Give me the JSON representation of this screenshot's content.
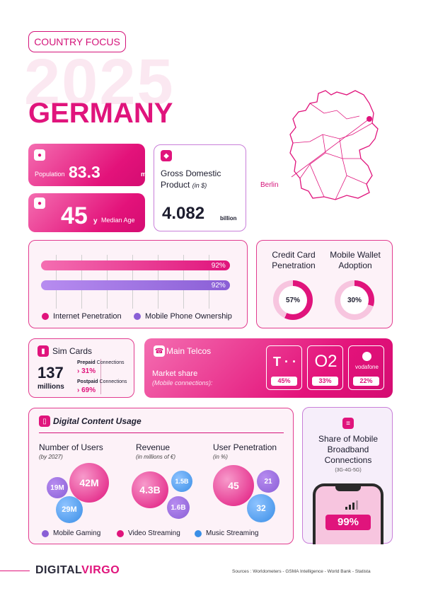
{
  "header": {
    "tag": "COUNTRY FOCUS",
    "year": "2025",
    "country": "GERMANY"
  },
  "map": {
    "capital_label": "Berlin"
  },
  "population": {
    "icon": "person-icon",
    "label": "Population",
    "value": "83.3",
    "unit": "millions"
  },
  "median_age": {
    "icon": "head-icon",
    "value": "45",
    "suffix": "y",
    "label": "Median Age"
  },
  "gdp": {
    "icon": "diamond-icon",
    "title": "Gross Domestic Product",
    "subtitle": "(in $)",
    "value": "4.082",
    "unit": "billion"
  },
  "penetration": {
    "internet": {
      "label": "Internet Penetration",
      "value_text": "92%",
      "value": 92,
      "color": "#e0147c"
    },
    "mobile": {
      "label": "Mobile Phone Ownership",
      "value_text": "92%",
      "value": 92,
      "color": "#8a5fd6"
    }
  },
  "credit_card": {
    "title_line1": "Credit Card",
    "title_line2": "Penetration",
    "value_text": "57%",
    "value": 57
  },
  "mobile_wallet": {
    "title_line1": "Mobile Wallet",
    "title_line2": "Adoption",
    "value_text": "30%",
    "value": 30
  },
  "sim": {
    "icon": "sim-card-icon",
    "title": "Sim Cards",
    "total": "137",
    "total_unit": "millions",
    "prepaid_label": "Prepaid",
    "prepaid_suffix": "Connections",
    "prepaid_value": "31%",
    "postpaid_label": "Postpaid",
    "postpaid_suffix": "Connections",
    "postpaid_value": "69%"
  },
  "telcos": {
    "icon": "phone-icon",
    "title": "Main Telcos",
    "market_share": "Market share",
    "market_sub": "(Mobile connections):",
    "operators": [
      {
        "logo": "T · ·",
        "share": "45%"
      },
      {
        "logo": "O2",
        "share": "33%"
      },
      {
        "logo": "vodafone",
        "share": "22%"
      }
    ]
  },
  "digital": {
    "icon": "tablet-icon",
    "title": "Digital Content Usage",
    "users": {
      "heading": "Number of Users",
      "sub": "(by 2027)",
      "gaming": "19M",
      "video": "42M",
      "music": "29M"
    },
    "revenue": {
      "heading": "Revenue",
      "sub": "(in millions of €)",
      "video": "4.3B",
      "music": "1.5B",
      "gaming": "1.6B"
    },
    "penetration": {
      "heading": "User Penetration",
      "sub": "(in %)",
      "video": "45",
      "gaming": "21",
      "music": "32"
    },
    "legend": {
      "gaming": "Mobile Gaming",
      "video": "Video Streaming",
      "music": "Music Streaming"
    },
    "colors": {
      "gaming": "#8a5fd6",
      "video": "#e0147c",
      "music": "#3a8ee6"
    }
  },
  "broadband": {
    "icon": "signal-icon",
    "title_line1": "Share of Mobile",
    "title_line2": "Broadband",
    "title_line3": "Connections",
    "sub": "(3G-4G-5G)",
    "value": "99%"
  },
  "footer": {
    "brand_a": "DIGITAL",
    "brand_b": "VIRGO",
    "sources": "Sources : Worldometers - GSMA Intelligence - World Bank - Statista"
  }
}
